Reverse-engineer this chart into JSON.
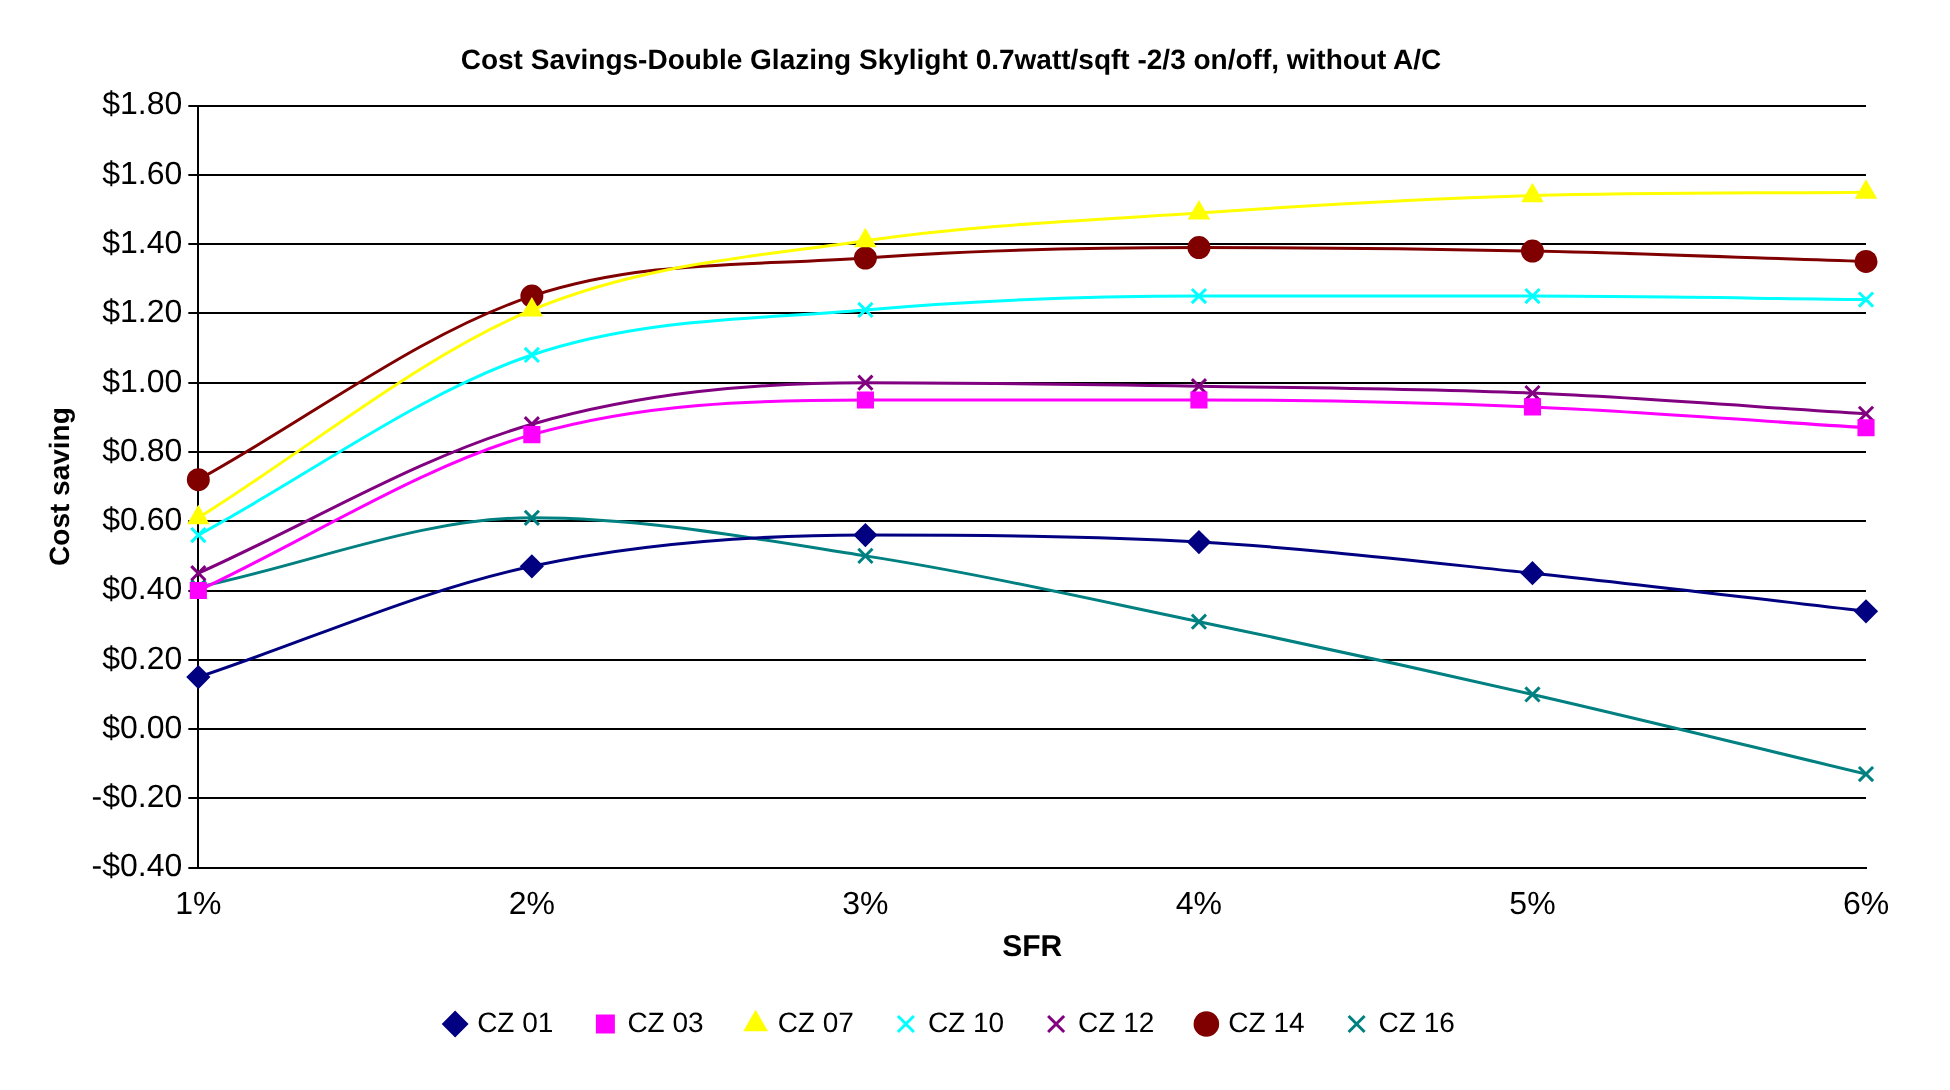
{
  "chart_data": {
    "type": "line",
    "title": "Cost Savings-Double Glazing Skylight 0.7watt/sqft -2/3 on/off, without A/C",
    "xlabel": "SFR",
    "ylabel": "Cost saving",
    "categories": [
      "1%",
      "2%",
      "3%",
      "4%",
      "5%",
      "6%"
    ],
    "series": [
      {
        "name": "CZ 01",
        "color": "#000080",
        "marker": "diamond",
        "values": [
          0.15,
          0.47,
          0.56,
          0.54,
          0.45,
          0.34
        ]
      },
      {
        "name": "CZ 03",
        "color": "#ff00ff",
        "marker": "square",
        "values": [
          0.4,
          0.85,
          0.95,
          0.95,
          0.93,
          0.87
        ]
      },
      {
        "name": "CZ 07",
        "color": "#ffff00",
        "marker": "triangle",
        "values": [
          0.61,
          1.21,
          1.41,
          1.49,
          1.54,
          1.55
        ]
      },
      {
        "name": "CZ 10",
        "color": "#00ffff",
        "marker": "cross",
        "values": [
          0.56,
          1.08,
          1.21,
          1.25,
          1.25,
          1.24
        ]
      },
      {
        "name": "CZ 12",
        "color": "#800080",
        "marker": "cross",
        "values": [
          0.45,
          0.88,
          1.0,
          0.99,
          0.97,
          0.91
        ]
      },
      {
        "name": "CZ 14",
        "color": "#800000",
        "marker": "circle",
        "values": [
          0.72,
          1.25,
          1.36,
          1.39,
          1.38,
          1.35
        ]
      },
      {
        "name": "CZ 16",
        "color": "#008080",
        "marker": "cross",
        "values": [
          0.41,
          0.61,
          0.5,
          0.31,
          0.1,
          -0.13
        ]
      }
    ],
    "ylim": [
      -0.4,
      1.8
    ],
    "yticks": [
      {
        "value": -0.4,
        "label": "-$0.40"
      },
      {
        "value": -0.2,
        "label": "-$0.20"
      },
      {
        "value": 0,
        "label": "$0.00"
      },
      {
        "value": 0.2,
        "label": "$0.20"
      },
      {
        "value": 0.4,
        "label": "$0.40"
      },
      {
        "value": 0.6,
        "label": "$0.60"
      },
      {
        "value": 0.8,
        "label": "$0.80"
      },
      {
        "value": 1.0,
        "label": "$1.00"
      },
      {
        "value": 1.2,
        "label": "$1.20"
      },
      {
        "value": 1.4,
        "label": "$1.40"
      },
      {
        "value": 1.6,
        "label": "$1.60"
      },
      {
        "value": 1.8,
        "label": "$1.80"
      }
    ],
    "grid": "y",
    "legend": "bottom"
  }
}
